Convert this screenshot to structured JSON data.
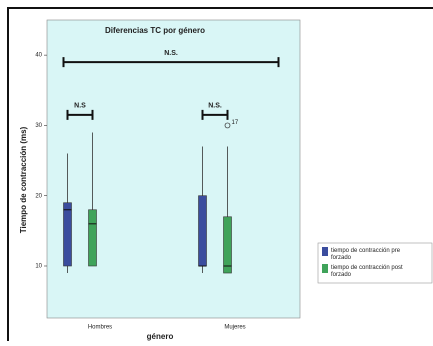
{
  "chart_data": {
    "type": "box",
    "title": "Diferencias TC por género",
    "x_label": "género",
    "y_label": "Tiempo de contracción (ms)",
    "categories": [
      "Hombres",
      "Mujeres"
    ],
    "series": [
      {
        "name": "tiempo de contracción pre forzado",
        "color": "#3b4d9e",
        "values": [
          {
            "min": 9,
            "q1": 10,
            "median": 18,
            "q3": 19,
            "max": 26
          },
          {
            "min": 9,
            "q1": 10,
            "median": 10,
            "q3": 20,
            "max": 27
          }
        ],
        "outliers": [
          [],
          []
        ]
      },
      {
        "name": "tiempo de contracción post forzado",
        "color": "#3fa35a",
        "values": [
          {
            "min": 10,
            "q1": 10,
            "median": 16,
            "q3": 18,
            "max": 29
          },
          {
            "min": 9,
            "q1": 9,
            "median": 10,
            "q3": 17,
            "max": 27
          }
        ],
        "outliers": [
          [],
          [
            {
              "value": 30,
              "label": "17"
            }
          ]
        ]
      }
    ],
    "annotations": [
      {
        "label": "N.S.",
        "value": 39
      },
      {
        "label": "N.S",
        "value": 31.5
      },
      {
        "label": "N.S.",
        "value": 31.5
      }
    ],
    "ylim": [
      2.6,
      45
    ],
    "yticks": [
      10,
      20,
      30,
      40
    ],
    "legend": "right"
  }
}
